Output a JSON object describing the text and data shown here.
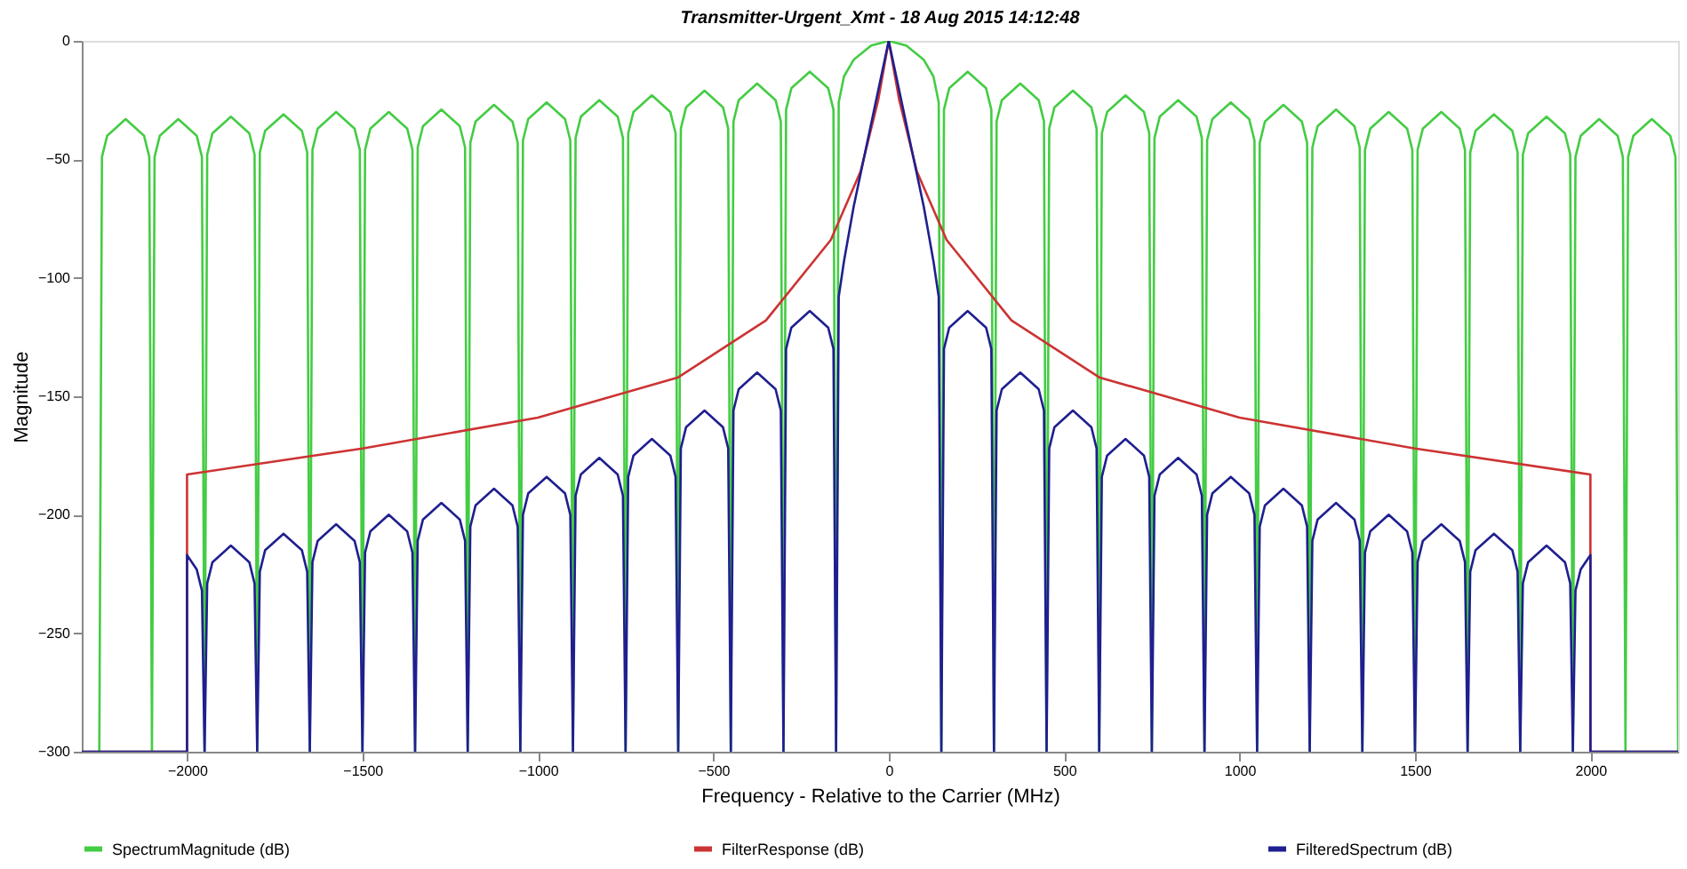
{
  "chart_data": {
    "type": "line",
    "title": "Transmitter-Urgent_Xmt - 18 Aug 2015 14:12:48",
    "xlabel": "Frequency - Relative to the Carrier (MHz)",
    "ylabel": "Magnitude",
    "xlim": [
      -2300,
      2250
    ],
    "ylim": [
      -300,
      0
    ],
    "xticks": [
      -2000,
      -1500,
      -1000,
      -500,
      0,
      500,
      1000,
      1500,
      2000
    ],
    "yticks": [
      -300,
      -250,
      -200,
      -150,
      -100,
      -50,
      0
    ],
    "grid": false,
    "legend": "bottom",
    "series": [
      {
        "name": "SpectrumMagnitude (dB)",
        "color": "#44cc44",
        "x": [
          -2250,
          -2242.5,
          -2227.5,
          -2175,
          -2122.5,
          -2107.5,
          -2100,
          -2092.5,
          -2077.5,
          -2025,
          -1972.5,
          -1957.5,
          -1950,
          -1942.5,
          -1927.5,
          -1875,
          -1822.5,
          -1807.5,
          -1800,
          -1792.5,
          -1777.5,
          -1725,
          -1672.5,
          -1657.5,
          -1650,
          -1642.5,
          -1627.5,
          -1575,
          -1522.5,
          -1507.5,
          -1500,
          -1492.5,
          -1477.5,
          -1425,
          -1372.5,
          -1357.5,
          -1350,
          -1342.5,
          -1327.5,
          -1275,
          -1222.5,
          -1207.5,
          -1200,
          -1192.5,
          -1177.5,
          -1125,
          -1072.5,
          -1057.5,
          -1050,
          -1042.5,
          -1027.5,
          -975,
          -922.5,
          -907.5,
          -900,
          -892.5,
          -877.5,
          -825,
          -772.5,
          -757.5,
          -750,
          -742.5,
          -727.5,
          -675,
          -622.5,
          -607.5,
          -600,
          -592.5,
          -577.5,
          -525,
          -472.5,
          -457.5,
          -450,
          -442.5,
          -427.5,
          -375,
          -322.5,
          -307.5,
          -300,
          -292.5,
          -277.5,
          -225,
          -172.5,
          -157.5,
          -150,
          -142.5,
          -127.5,
          -100,
          -50,
          0,
          50,
          100,
          127.5,
          142.5,
          150,
          157.5,
          172.5,
          225,
          277.5,
          292.5,
          300,
          307.5,
          322.5,
          375,
          427.5,
          442.5,
          450,
          457.5,
          472.5,
          525,
          577.5,
          592.5,
          600,
          607.5,
          622.5,
          675,
          727.5,
          742.5,
          750,
          757.5,
          772.5,
          825,
          877.5,
          892.5,
          900,
          907.5,
          922.5,
          975,
          1027.5,
          1042.5,
          1050,
          1057.5,
          1072.5,
          1125,
          1177.5,
          1192.5,
          1200,
          1207.5,
          1222.5,
          1275,
          1327.5,
          1342.5,
          1350,
          1357.5,
          1372.5,
          1425,
          1477.5,
          1492.5,
          1500,
          1507.5,
          1522.5,
          1575,
          1627.5,
          1642.5,
          1650,
          1657.5,
          1672.5,
          1725,
          1777.5,
          1792.5,
          1800,
          1807.5,
          1822.5,
          1875,
          1927.5,
          1942.5,
          1950,
          1957.5,
          1972.5,
          2025,
          2077.5,
          2092.5,
          2100,
          2107.5,
          2122.5,
          2175,
          2227.5,
          2242.5,
          2250
        ],
        "values": [
          -300,
          -49,
          -40,
          -33,
          -40,
          -49,
          -300,
          -49,
          -40,
          -33,
          -40,
          -49,
          -300,
          -48,
          -39,
          -32,
          -39,
          -48,
          -300,
          -47,
          -38,
          -31,
          -38,
          -47,
          -300,
          -46,
          -37,
          -30,
          -37,
          -46,
          -300,
          -46,
          -37,
          -30,
          -37,
          -46,
          -300,
          -45,
          -36,
          -29,
          -36,
          -45,
          -300,
          -43,
          -34,
          -27,
          -34,
          -43,
          -300,
          -42,
          -33,
          -26,
          -33,
          -42,
          -300,
          -41,
          -32,
          -25,
          -32,
          -41,
          -300,
          -39,
          -30,
          -23,
          -30,
          -39,
          -300,
          -37,
          -28,
          -21,
          -28,
          -37,
          -300,
          -34,
          -25,
          -18,
          -25,
          -34,
          -300,
          -29,
          -20,
          -13,
          -20,
          -29,
          -300,
          -26,
          -15,
          -8,
          -2,
          0,
          -2,
          -8,
          -15,
          -26,
          -300,
          -29,
          -20,
          -13,
          -20,
          -29,
          -300,
          -34,
          -25,
          -18,
          -25,
          -34,
          -300,
          -37,
          -28,
          -21,
          -28,
          -37,
          -300,
          -39,
          -30,
          -23,
          -30,
          -39,
          -300,
          -41,
          -32,
          -25,
          -32,
          -41,
          -300,
          -42,
          -33,
          -26,
          -33,
          -42,
          -300,
          -43,
          -34,
          -27,
          -34,
          -43,
          -300,
          -45,
          -36,
          -29,
          -36,
          -45,
          -300,
          -46,
          -37,
          -30,
          -37,
          -46,
          -300,
          -46,
          -37,
          -30,
          -37,
          -46,
          -300,
          -47,
          -38,
          -31,
          -38,
          -47,
          -300,
          -48,
          -39,
          -32,
          -39,
          -48,
          -300,
          -49,
          -40,
          -33,
          -40,
          -49,
          -300,
          -49,
          -40,
          -33,
          -40,
          -49,
          -300
        ]
      },
      {
        "name": "FilterResponse (dB)",
        "color": "#cc3333",
        "x": [
          -2300,
          -2000,
          -2000,
          -1500,
          -1000,
          -600,
          -350,
          -165,
          -80,
          -30,
          0,
          30,
          80,
          165,
          350,
          600,
          1000,
          1500,
          2000,
          2000,
          2250
        ],
        "values": [
          -300,
          -300,
          -183,
          -172,
          -159,
          -142,
          -118,
          -84,
          -55,
          -25,
          0,
          -25,
          -55,
          -84,
          -118,
          -142,
          -159,
          -172,
          -183,
          -300,
          -300
        ]
      },
      {
        "name": "FilteredSpectrum (dB)",
        "color": "#1f1f8f",
        "x": [
          -2300,
          -2000,
          -2000,
          -1972.5,
          -1957.5,
          -1950,
          -1942.5,
          -1927.5,
          -1875,
          -1822.5,
          -1807.5,
          -1800,
          -1792.5,
          -1777.5,
          -1725,
          -1672.5,
          -1657.5,
          -1650,
          -1642.5,
          -1627.5,
          -1575,
          -1522.5,
          -1507.5,
          -1500,
          -1492.5,
          -1477.5,
          -1425,
          -1372.5,
          -1357.5,
          -1350,
          -1342.5,
          -1327.5,
          -1275,
          -1222.5,
          -1207.5,
          -1200,
          -1192.5,
          -1177.5,
          -1125,
          -1072.5,
          -1057.5,
          -1050,
          -1042.5,
          -1027.5,
          -975,
          -922.5,
          -907.5,
          -900,
          -892.5,
          -877.5,
          -825,
          -772.5,
          -757.5,
          -750,
          -742.5,
          -727.5,
          -675,
          -622.5,
          -607.5,
          -600,
          -592.5,
          -577.5,
          -525,
          -472.5,
          -457.5,
          -450,
          -442.5,
          -427.5,
          -375,
          -322.5,
          -307.5,
          -300,
          -292.5,
          -277.5,
          -225,
          -172.5,
          -157.5,
          -150,
          -142.5,
          -127.5,
          -100,
          -50,
          -20,
          0,
          20,
          50,
          100,
          127.5,
          142.5,
          150,
          157.5,
          172.5,
          225,
          277.5,
          292.5,
          300,
          307.5,
          322.5,
          375,
          427.5,
          442.5,
          450,
          457.5,
          472.5,
          525,
          577.5,
          592.5,
          600,
          607.5,
          622.5,
          675,
          727.5,
          742.5,
          750,
          757.5,
          772.5,
          825,
          877.5,
          892.5,
          900,
          907.5,
          922.5,
          975,
          1027.5,
          1042.5,
          1050,
          1057.5,
          1072.5,
          1125,
          1177.5,
          1192.5,
          1200,
          1207.5,
          1222.5,
          1275,
          1327.5,
          1342.5,
          1350,
          1357.5,
          1372.5,
          1425,
          1477.5,
          1492.5,
          1500,
          1507.5,
          1522.5,
          1575,
          1627.5,
          1642.5,
          1650,
          1657.5,
          1672.5,
          1725,
          1777.5,
          1792.5,
          1800,
          1807.5,
          1822.5,
          1875,
          1927.5,
          1942.5,
          1950,
          1957.5,
          1972.5,
          2000,
          2000,
          2250
        ],
        "values": [
          -300,
          -300,
          -217,
          -223,
          -232,
          -300,
          -229,
          -220,
          -213,
          -220,
          -229,
          -300,
          -224,
          -215,
          -208,
          -215,
          -224,
          -300,
          -220,
          -211,
          -204,
          -211,
          -220,
          -300,
          -216,
          -207,
          -200,
          -207,
          -216,
          -300,
          -211,
          -202,
          -195,
          -202,
          -211,
          -300,
          -205,
          -196,
          -189,
          -196,
          -205,
          -300,
          -200,
          -191,
          -184,
          -191,
          -200,
          -300,
          -192,
          -183,
          -176,
          -183,
          -192,
          -300,
          -184,
          -175,
          -168,
          -175,
          -184,
          -300,
          -172,
          -163,
          -156,
          -163,
          -172,
          -300,
          -156,
          -147,
          -140,
          -147,
          -156,
          -300,
          -130,
          -121,
          -114,
          -121,
          -130,
          -300,
          -108,
          -93,
          -70,
          -35,
          -14,
          0,
          -14,
          -35,
          -70,
          -93,
          -108,
          -300,
          -130,
          -121,
          -114,
          -121,
          -130,
          -300,
          -156,
          -147,
          -140,
          -147,
          -156,
          -300,
          -172,
          -163,
          -156,
          -163,
          -172,
          -300,
          -184,
          -175,
          -168,
          -175,
          -184,
          -300,
          -192,
          -183,
          -176,
          -183,
          -192,
          -300,
          -200,
          -191,
          -184,
          -191,
          -200,
          -300,
          -205,
          -196,
          -189,
          -196,
          -205,
          -300,
          -211,
          -202,
          -195,
          -202,
          -211,
          -300,
          -216,
          -207,
          -200,
          -207,
          -216,
          -300,
          -220,
          -211,
          -204,
          -211,
          -220,
          -300,
          -224,
          -215,
          -208,
          -215,
          -224,
          -300,
          -229,
          -220,
          -213,
          -220,
          -229,
          -300,
          -232,
          -223,
          -217,
          -300,
          -300
        ]
      }
    ]
  }
}
